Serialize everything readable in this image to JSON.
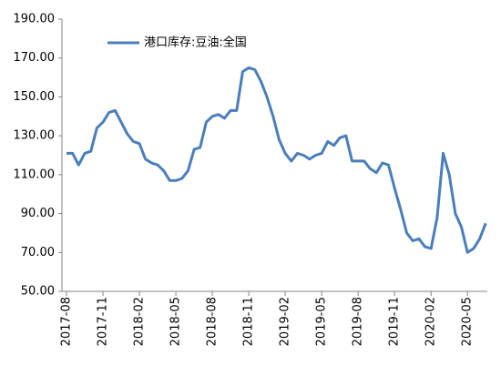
{
  "chart_data": {
    "type": "line",
    "categories": [
      "2017-08",
      null,
      null,
      null,
      null,
      null,
      "2017-11",
      null,
      null,
      null,
      null,
      null,
      "2018-02",
      null,
      null,
      null,
      null,
      null,
      "2018-05",
      null,
      null,
      null,
      null,
      null,
      "2018-08",
      null,
      null,
      null,
      null,
      null,
      "2018-11",
      null,
      null,
      null,
      null,
      null,
      "2019-02",
      null,
      null,
      null,
      null,
      null,
      "2019-05",
      null,
      null,
      null,
      null,
      null,
      "2019-08",
      null,
      null,
      null,
      null,
      null,
      "2019-11",
      null,
      null,
      null,
      null,
      null,
      "2020-02",
      null,
      null,
      null,
      null,
      null,
      "2020-05",
      null,
      null,
      null
    ],
    "series": [
      {
        "name": "港口库存:豆油:全国",
        "color": "#4a7ebb",
        "values": [
          121,
          121,
          115,
          121,
          122,
          134,
          137,
          142,
          143,
          137,
          131,
          127,
          126,
          118,
          116,
          115,
          112,
          107,
          107,
          108,
          112,
          123,
          124,
          137,
          140,
          141,
          139,
          143,
          143,
          163,
          165,
          164,
          158,
          150,
          140,
          128,
          121,
          117,
          121,
          120,
          118,
          120,
          121,
          127,
          125,
          129,
          130,
          117,
          117,
          117,
          113,
          111,
          116,
          115,
          103,
          92,
          80,
          76,
          77,
          73,
          72,
          88,
          121,
          110,
          90,
          83,
          70,
          72,
          77,
          85
        ]
      }
    ],
    "ylim": [
      50,
      190
    ],
    "yticks": [
      {
        "value": 50,
        "label": "50.00"
      },
      {
        "value": 70,
        "label": "70.00"
      },
      {
        "value": 90,
        "label": "90.00"
      },
      {
        "value": 110,
        "label": "110.00"
      },
      {
        "value": 130,
        "label": "130.00"
      },
      {
        "value": 150,
        "label": "150.00"
      },
      {
        "value": 170,
        "label": "170.00"
      },
      {
        "value": 190,
        "label": "190.00"
      }
    ],
    "legend": "top-left"
  }
}
